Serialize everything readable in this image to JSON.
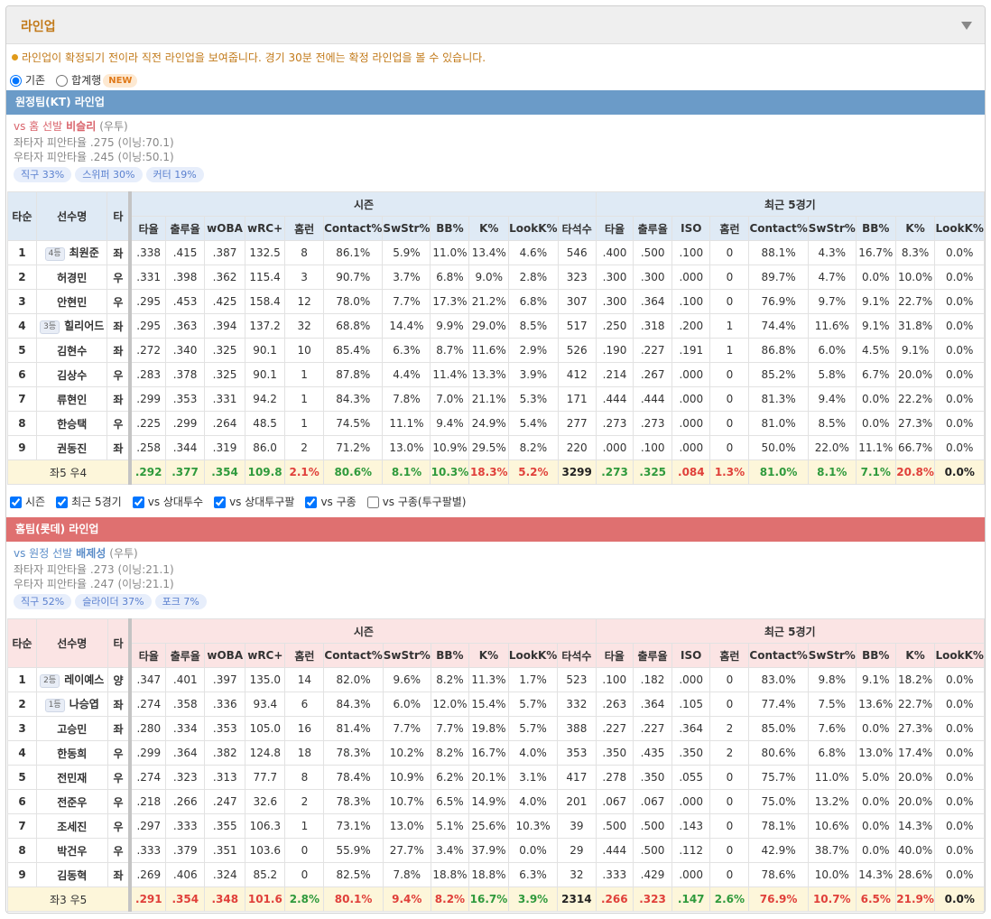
{
  "header": {
    "title": "라인업"
  },
  "notice": "라인업이 확정되기 전이라 직전 라인업을 보여줍니다. 경기 30분 전에는 확정 라인업을 볼 수 있습니다.",
  "view_options": [
    {
      "label": "기존",
      "checked": true
    },
    {
      "label": "합계행",
      "checked": false,
      "badge": "NEW"
    }
  ],
  "table_header": {
    "fixed": [
      "타순",
      "선수명",
      "타"
    ],
    "groups": [
      {
        "title": "시즌",
        "columns": [
          "타율",
          "출루율",
          "wOBA",
          "wRC+",
          "홈런",
          "Contact%",
          "SwStr%",
          "BB%",
          "K%",
          "LookK%",
          "타석수"
        ]
      },
      {
        "title": "최근 5경기",
        "columns": [
          "타율",
          "출루율",
          "ISO",
          "홈런",
          "Contact%",
          "SwStr%",
          "BB%",
          "K%",
          "LookK%"
        ]
      }
    ]
  },
  "filters": [
    {
      "label": "시즌",
      "checked": true
    },
    {
      "label": "최근 5경기",
      "checked": true
    },
    {
      "label": "vs 상대투수",
      "checked": true
    },
    {
      "label": "vs 상대투구팔",
      "checked": true
    },
    {
      "label": "vs 구종",
      "checked": true
    },
    {
      "label": "vs 구종(투구팔별)",
      "checked": false
    }
  ],
  "teams": [
    {
      "title": "원정팀(KT) 라인업",
      "color": "#6b9bc8",
      "header_bg": "#dfeaf5",
      "accent": "#d9636b",
      "vs_label": "vs 홈 선발",
      "pitcher": "비슬리",
      "pitcher_hand": "(우투)",
      "splits": [
        "좌타자 피안타율 .275 (이닝:70.1)",
        "우타자 피안타율 .245 (이닝:50.1)"
      ],
      "pitches": [
        "직구 33%",
        "스위퍼 30%",
        "커터 19%"
      ],
      "rows": [
        {
          "order": 1,
          "badge": "4등",
          "name": "최원준",
          "hand": "좌",
          "stats": [
            ".338",
            ".415",
            ".387",
            "132.5",
            "8",
            "86.1%",
            "5.9%",
            "11.0%",
            "13.4%",
            "4.6%",
            "546",
            ".400",
            ".500",
            ".100",
            "0",
            "88.1%",
            "4.3%",
            "16.7%",
            "8.3%",
            "0.0%"
          ]
        },
        {
          "order": 2,
          "name": "허경민",
          "hand": "우",
          "stats": [
            ".331",
            ".398",
            ".362",
            "115.4",
            "3",
            "90.7%",
            "3.7%",
            "6.8%",
            "9.0%",
            "2.8%",
            "323",
            ".300",
            ".300",
            ".000",
            "0",
            "89.7%",
            "4.7%",
            "0.0%",
            "10.0%",
            "0.0%"
          ]
        },
        {
          "order": 3,
          "name": "안현민",
          "hand": "우",
          "stats": [
            ".295",
            ".453",
            ".425",
            "158.4",
            "12",
            "78.0%",
            "7.7%",
            "17.3%",
            "21.2%",
            "6.8%",
            "307",
            ".300",
            ".364",
            ".100",
            "0",
            "76.9%",
            "9.7%",
            "9.1%",
            "22.7%",
            "0.0%"
          ]
        },
        {
          "order": 4,
          "badge": "3등",
          "name": "힐리어드",
          "hand": "좌",
          "stats": [
            ".295",
            ".363",
            ".394",
            "137.2",
            "32",
            "68.8%",
            "14.4%",
            "9.9%",
            "29.0%",
            "8.5%",
            "517",
            ".250",
            ".318",
            ".200",
            "1",
            "74.4%",
            "11.6%",
            "9.1%",
            "31.8%",
            "0.0%"
          ]
        },
        {
          "order": 5,
          "name": "김현수",
          "hand": "좌",
          "stats": [
            ".272",
            ".340",
            ".325",
            "90.1",
            "10",
            "85.4%",
            "6.3%",
            "8.7%",
            "11.6%",
            "2.9%",
            "526",
            ".190",
            ".227",
            ".191",
            "1",
            "86.8%",
            "6.0%",
            "4.5%",
            "9.1%",
            "0.0%"
          ]
        },
        {
          "order": 6,
          "name": "김상수",
          "hand": "우",
          "stats": [
            ".283",
            ".378",
            ".325",
            "90.1",
            "1",
            "87.8%",
            "4.4%",
            "11.4%",
            "13.3%",
            "3.9%",
            "412",
            ".214",
            ".267",
            ".000",
            "0",
            "85.2%",
            "5.8%",
            "6.7%",
            "20.0%",
            "0.0%"
          ]
        },
        {
          "order": 7,
          "name": "류현인",
          "hand": "좌",
          "stats": [
            ".299",
            ".353",
            ".331",
            "94.2",
            "1",
            "84.3%",
            "7.8%",
            "7.0%",
            "21.1%",
            "5.3%",
            "171",
            ".444",
            ".444",
            ".000",
            "0",
            "81.3%",
            "9.4%",
            "0.0%",
            "22.2%",
            "0.0%"
          ]
        },
        {
          "order": 8,
          "name": "한승택",
          "hand": "우",
          "stats": [
            ".225",
            ".299",
            ".264",
            "48.5",
            "1",
            "74.5%",
            "11.1%",
            "9.4%",
            "24.9%",
            "5.4%",
            "277",
            ".273",
            ".273",
            ".000",
            "0",
            "81.0%",
            "8.5%",
            "0.0%",
            "27.3%",
            "0.0%"
          ]
        },
        {
          "order": 9,
          "name": "권동진",
          "hand": "좌",
          "stats": [
            ".258",
            ".344",
            ".319",
            "86.0",
            "2",
            "71.2%",
            "13.0%",
            "10.9%",
            "29.5%",
            "8.2%",
            "220",
            ".000",
            ".100",
            ".000",
            "0",
            "50.0%",
            "22.0%",
            "11.1%",
            "66.7%",
            "0.0%"
          ]
        }
      ],
      "summary": {
        "label": "좌5 우4",
        "stats": [
          ".292",
          ".377",
          ".354",
          "109.8",
          "2.1%",
          "80.6%",
          "8.1%",
          "10.3%",
          "18.3%",
          "5.2%",
          "3299",
          ".273",
          ".325",
          ".084",
          "1.3%",
          "81.0%",
          "8.1%",
          "7.1%",
          "20.8%",
          "0.0%"
        ],
        "colors": [
          "#2f9a3c",
          "#2f9a3c",
          "#2f9a3c",
          "#2f9a3c",
          "#e0403a",
          "#2f9a3c",
          "#2f9a3c",
          "#2f9a3c",
          "#e0403a",
          "#e0403a",
          "#222222",
          "#2f9a3c",
          "#2f9a3c",
          "#e0403a",
          "#e0403a",
          "#2f9a3c",
          "#2f9a3c",
          "#2f9a3c",
          "#e0403a",
          "#222222"
        ]
      }
    },
    {
      "title": "홈팀(롯데) 라인업",
      "color": "#df7070",
      "header_bg": "#fbe4e4",
      "accent": "#5a8cc8",
      "vs_label": "vs 원정 선발",
      "pitcher": "배제성",
      "pitcher_hand": "(우투)",
      "splits": [
        "좌타자 피안타율 .273 (이닝:21.1)",
        "우타자 피안타율 .247 (이닝:21.1)"
      ],
      "pitches": [
        "직구 52%",
        "슬라이더 37%",
        "포크 7%"
      ],
      "rows": [
        {
          "order": 1,
          "badge": "2등",
          "name": "레이예스",
          "hand": "양",
          "stats": [
            ".347",
            ".401",
            ".397",
            "135.0",
            "14",
            "82.0%",
            "9.6%",
            "8.2%",
            "11.3%",
            "1.7%",
            "523",
            ".100",
            ".182",
            ".000",
            "0",
            "83.0%",
            "9.8%",
            "9.1%",
            "18.2%",
            "0.0%"
          ]
        },
        {
          "order": 2,
          "badge": "1등",
          "name": "나승엽",
          "hand": "좌",
          "stats": [
            ".274",
            ".358",
            ".336",
            "93.4",
            "6",
            "84.3%",
            "6.0%",
            "12.0%",
            "15.4%",
            "5.7%",
            "332",
            ".263",
            ".364",
            ".105",
            "0",
            "77.4%",
            "7.5%",
            "13.6%",
            "22.7%",
            "0.0%"
          ]
        },
        {
          "order": 3,
          "name": "고승민",
          "hand": "좌",
          "stats": [
            ".280",
            ".334",
            ".353",
            "105.0",
            "16",
            "81.4%",
            "7.7%",
            "7.7%",
            "19.8%",
            "5.7%",
            "388",
            ".227",
            ".227",
            ".364",
            "2",
            "85.0%",
            "7.6%",
            "0.0%",
            "27.3%",
            "0.0%"
          ]
        },
        {
          "order": 4,
          "name": "한동희",
          "hand": "우",
          "stats": [
            ".299",
            ".364",
            ".382",
            "124.8",
            "18",
            "78.3%",
            "10.2%",
            "8.2%",
            "16.7%",
            "4.0%",
            "353",
            ".350",
            ".435",
            ".350",
            "2",
            "80.6%",
            "6.8%",
            "13.0%",
            "17.4%",
            "0.0%"
          ]
        },
        {
          "order": 5,
          "name": "전민재",
          "hand": "우",
          "stats": [
            ".274",
            ".323",
            ".313",
            "77.7",
            "8",
            "78.4%",
            "10.9%",
            "6.2%",
            "20.1%",
            "3.1%",
            "417",
            ".278",
            ".350",
            ".055",
            "0",
            "75.7%",
            "11.0%",
            "5.0%",
            "20.0%",
            "0.0%"
          ]
        },
        {
          "order": 6,
          "name": "전준우",
          "hand": "우",
          "stats": [
            ".218",
            ".266",
            ".247",
            "32.6",
            "2",
            "78.3%",
            "10.7%",
            "6.5%",
            "14.9%",
            "4.0%",
            "201",
            ".067",
            ".067",
            ".000",
            "0",
            "75.0%",
            "13.2%",
            "0.0%",
            "20.0%",
            "0.0%"
          ]
        },
        {
          "order": 7,
          "name": "조세진",
          "hand": "우",
          "stats": [
            ".297",
            ".333",
            ".355",
            "106.3",
            "1",
            "73.1%",
            "13.0%",
            "5.1%",
            "25.6%",
            "10.3%",
            "39",
            ".500",
            ".500",
            ".143",
            "0",
            "78.1%",
            "10.6%",
            "0.0%",
            "14.3%",
            "0.0%"
          ]
        },
        {
          "order": 8,
          "name": "박건우",
          "hand": "우",
          "stats": [
            ".333",
            ".379",
            ".351",
            "103.6",
            "0",
            "55.9%",
            "27.7%",
            "3.4%",
            "37.9%",
            "0.0%",
            "29",
            ".444",
            ".500",
            ".112",
            "0",
            "42.9%",
            "38.7%",
            "0.0%",
            "40.0%",
            "0.0%"
          ]
        },
        {
          "order": 9,
          "name": "김동혁",
          "hand": "좌",
          "stats": [
            ".269",
            ".406",
            ".324",
            "85.2",
            "0",
            "82.5%",
            "7.8%",
            "18.8%",
            "18.8%",
            "6.3%",
            "32",
            ".333",
            ".429",
            ".000",
            "0",
            "78.6%",
            "10.0%",
            "14.3%",
            "28.6%",
            "0.0%"
          ]
        }
      ],
      "summary": {
        "label": "좌3 우5",
        "stats": [
          ".291",
          ".354",
          ".348",
          "101.6",
          "2.8%",
          "80.1%",
          "9.4%",
          "8.2%",
          "16.7%",
          "3.9%",
          "2314",
          ".266",
          ".323",
          ".147",
          "2.6%",
          "76.9%",
          "10.7%",
          "6.5%",
          "21.9%",
          "0.0%"
        ],
        "colors": [
          "#e0403a",
          "#e0403a",
          "#e0403a",
          "#e0403a",
          "#2f9a3c",
          "#e0403a",
          "#e0403a",
          "#e0403a",
          "#2f9a3c",
          "#2f9a3c",
          "#222222",
          "#e0403a",
          "#e0403a",
          "#2f9a3c",
          "#2f9a3c",
          "#e0403a",
          "#e0403a",
          "#e0403a",
          "#e0403a",
          "#222222"
        ]
      }
    }
  ]
}
